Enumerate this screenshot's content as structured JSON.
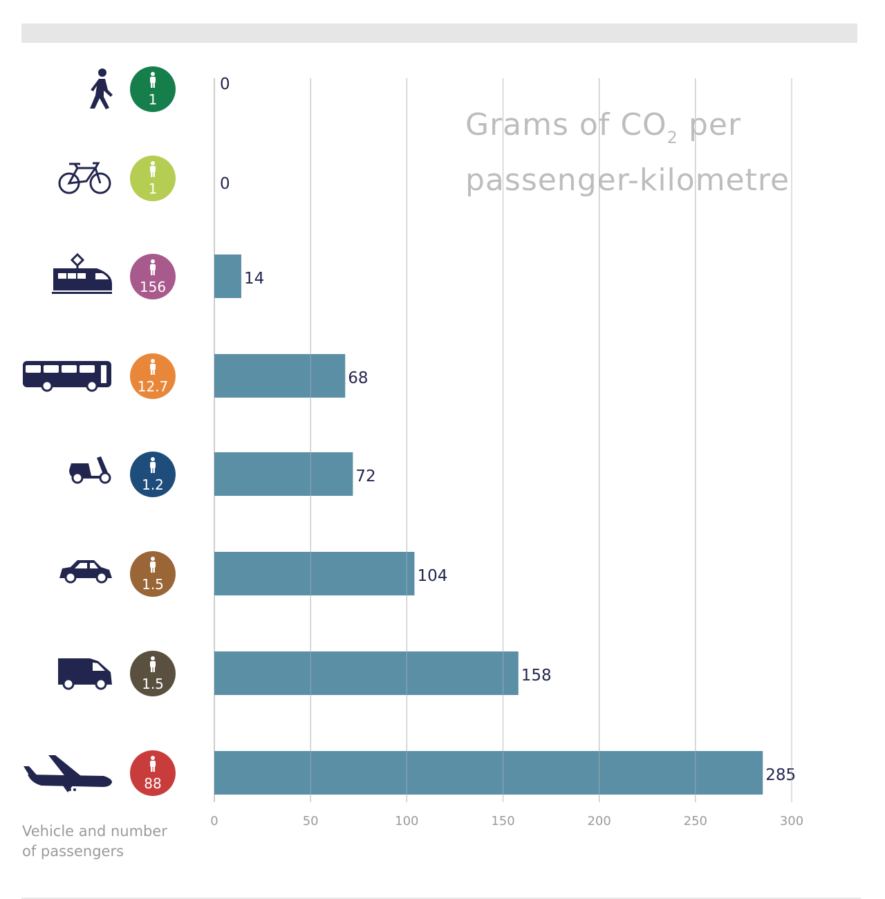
{
  "chart_data": {
    "type": "bar",
    "orientation": "horizontal",
    "title_parts": {
      "before": "Grams of CO",
      "sub": "2",
      "after": " per",
      "line2": "passenger-kilometre"
    },
    "xlabel": "",
    "ylabel": "Vehicle and number of passengers",
    "xlim": [
      0,
      300
    ],
    "xticks": [
      0,
      50,
      100,
      150,
      200,
      250,
      300
    ],
    "grid": true,
    "bar_color": "#5a8fa5",
    "label_color": "#22264f",
    "categories": [
      {
        "icon": "walking-person-icon",
        "passengers": "1",
        "badge_color": "#167e4b",
        "value": 0
      },
      {
        "icon": "bicycle-icon",
        "passengers": "1",
        "badge_color": "#b5cd52",
        "value": 0
      },
      {
        "icon": "train-icon",
        "passengers": "156",
        "badge_color": "#a95a8d",
        "value": 14
      },
      {
        "icon": "bus-icon",
        "passengers": "12.7",
        "badge_color": "#e8873a",
        "value": 68
      },
      {
        "icon": "scooter-icon",
        "passengers": "1.2",
        "badge_color": "#1e4d7b",
        "value": 72
      },
      {
        "icon": "car-icon",
        "passengers": "1.5",
        "badge_color": "#9a6537",
        "value": 104
      },
      {
        "icon": "van-icon",
        "passengers": "1.5",
        "badge_color": "#5a5040",
        "value": 158
      },
      {
        "icon": "airplane-icon",
        "passengers": "88",
        "badge_color": "#c93c3c",
        "value": 285
      }
    ],
    "values": [
      0,
      0,
      14,
      68,
      72,
      104,
      158,
      285
    ]
  },
  "footnote": {
    "line1": "Vehicle and number",
    "line2": "of passengers"
  }
}
